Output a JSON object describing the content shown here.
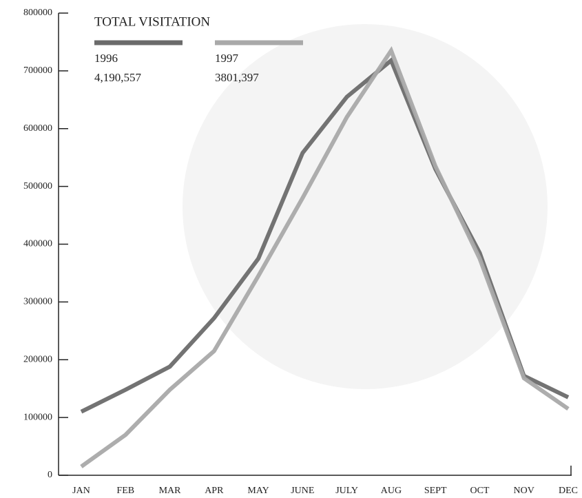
{
  "chart_data": {
    "type": "line",
    "title": "TOTAL VISITATION",
    "categories": [
      "JAN",
      "FEB",
      "MAR",
      "APR",
      "MAY",
      "JUNE",
      "JULY",
      "AUG",
      "SEPT",
      "OCT",
      "NOV",
      "DEC"
    ],
    "series": [
      {
        "name": "1996",
        "total_label": "4,190,557",
        "color": "#6b6b6b",
        "values": [
          110000,
          148000,
          188000,
          272000,
          375000,
          558000,
          655000,
          718000,
          530000,
          385000,
          172000,
          135000
        ]
      },
      {
        "name": "1997",
        "total_label": "3801,397",
        "color": "#a9a9a9",
        "values": [
          15000,
          70000,
          148000,
          215000,
          345000,
          480000,
          620000,
          735000,
          535000,
          375000,
          168000,
          115000
        ]
      }
    ],
    "ylim": [
      0,
      800000
    ],
    "yticks": [
      0,
      100000,
      200000,
      300000,
      400000,
      500000,
      600000,
      700000,
      800000
    ]
  }
}
